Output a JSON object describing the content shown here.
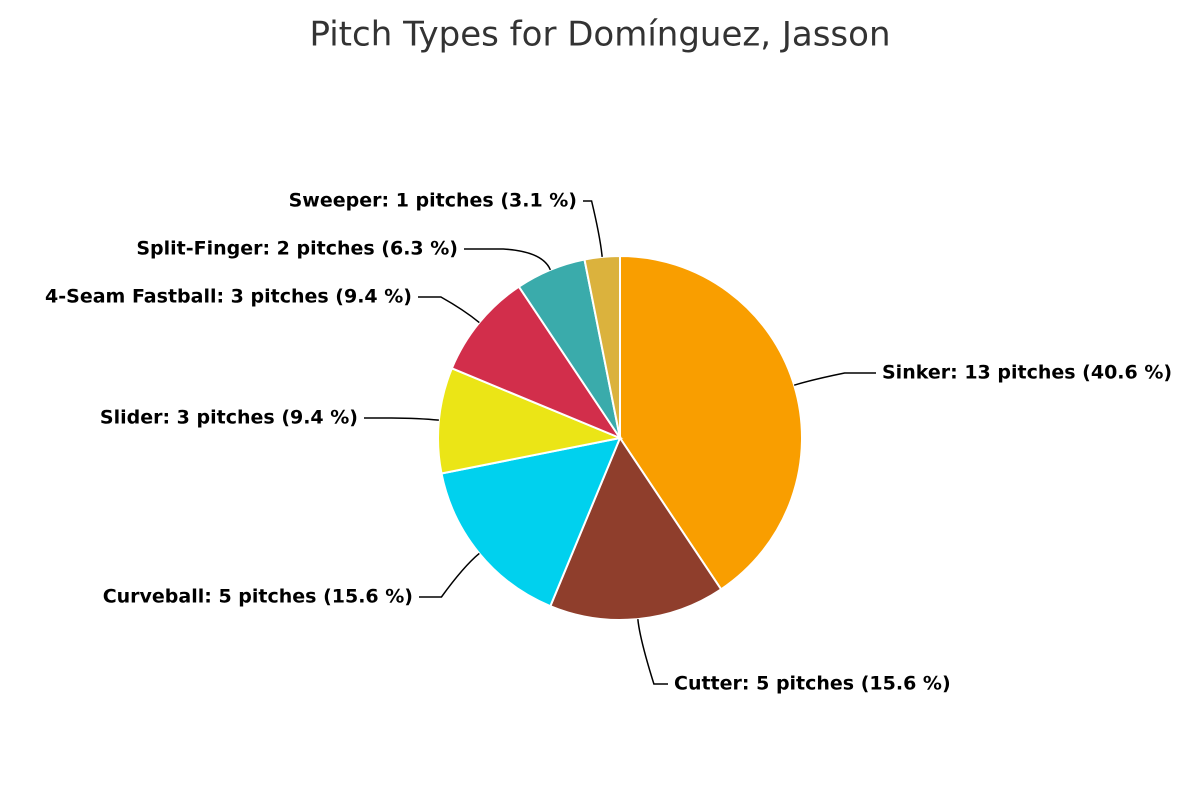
{
  "chart_data": {
    "type": "pie",
    "title": "Pitch Types for Domínguez, Jasson",
    "values": [
      13,
      5,
      5,
      3,
      3,
      2,
      1
    ],
    "value_labels": [
      "Sinker: 13 pitches (40.6 %)",
      "Cutter: 5 pitches (15.6 %)",
      "Curveball: 5 pitches (15.6 %)",
      "Slider: 3 pitches (9.4 %)",
      "4-Seam Fastball: 3 pitches (9.4 %)",
      "Split-Finger: 2 pitches (6.3 %)",
      "Sweeper: 1 pitches (3.1 %)"
    ],
    "colors": [
      "#f99e00",
      "#8f3e2c",
      "#00d1ee",
      "#ebe516",
      "#d22e4b",
      "#3aabab",
      "#dbb23d"
    ]
  }
}
